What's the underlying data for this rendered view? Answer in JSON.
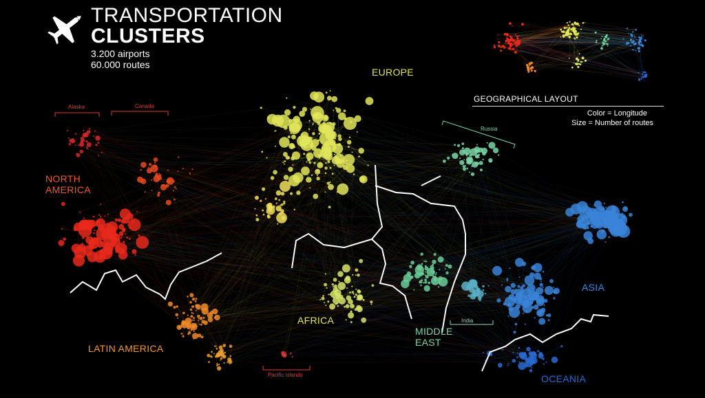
{
  "header": {
    "title_line1": "TRANSPORTATION",
    "title_line2": "CLUSTERS",
    "stat_airports": "3.200 airports",
    "stat_routes": "60.000 routes"
  },
  "inset": {
    "title": "GEOGRAPHICAL LAYOUT",
    "legend_color": "Color = Longitude",
    "legend_size": "Size = Number of routes"
  },
  "regions": {
    "europe": "EUROPE",
    "north_america_1": "NORTH",
    "north_america_2": "AMERICA",
    "latin_america": "LATIN AMERICA",
    "africa": "AFRICA",
    "middle_east_1": "MIDDLE",
    "middle_east_2": "EAST",
    "asia": "ASIA",
    "oceania": "OCEANIA"
  },
  "subregions": {
    "alaska": "Alaska",
    "canada": "Canada",
    "russia": "Russia",
    "india": "India",
    "pacific_islands": "Pacific islands"
  },
  "colors": {
    "background": "#000000",
    "north_america": "#e8291c",
    "latin_america": "#f08a2a",
    "europe": "#e2e65a",
    "africa": "#d7e46a",
    "middle_east": "#6ccf9a",
    "russia": "#7cd6a8",
    "asia": "#3a84d8",
    "oceania": "#2a6ad0"
  }
}
